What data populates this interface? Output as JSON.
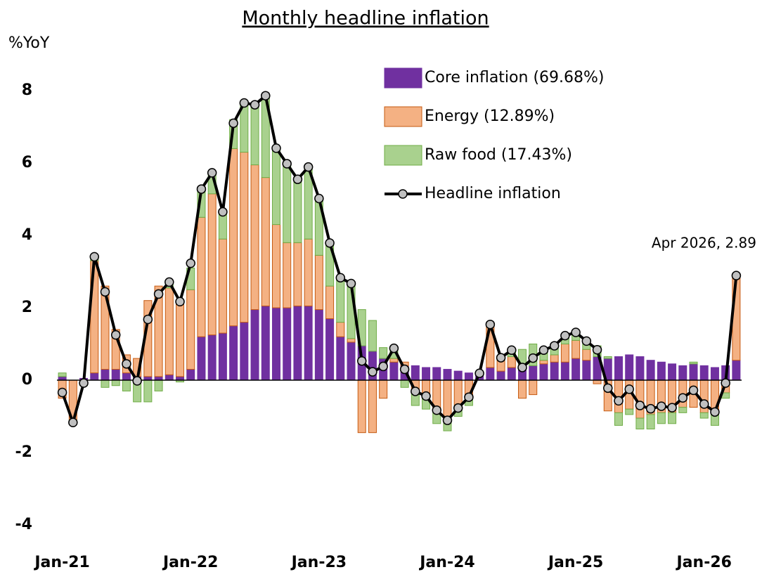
{
  "chart_data": {
    "type": "stacked-bar-line",
    "title": "Monthly headline inflation",
    "y_label": "%YoY",
    "annotation": "Apr 2026, 2.89",
    "categories": [
      "Jan-21",
      null,
      null,
      null,
      null,
      null,
      null,
      null,
      null,
      null,
      null,
      null,
      "Jan-22",
      null,
      null,
      null,
      null,
      null,
      null,
      null,
      null,
      null,
      null,
      null,
      "Jan-23",
      null,
      null,
      null,
      null,
      null,
      null,
      null,
      null,
      null,
      null,
      null,
      "Jan-24",
      null,
      null,
      null,
      null,
      null,
      null,
      null,
      null,
      null,
      null,
      null,
      "Jan-25",
      null,
      null,
      null,
      null,
      null,
      null,
      null,
      null,
      null,
      null,
      null,
      "Jan-26",
      null,
      null,
      null
    ],
    "ylim": [
      -4,
      8
    ],
    "yticks": [
      -4,
      -2,
      0,
      2,
      4,
      6,
      8
    ],
    "series": [
      {
        "name": "Core inflation (69.68%)",
        "kind": "bar",
        "color": "#7030a0",
        "values": [
          0.1,
          0,
          0.05,
          0.2,
          0.3,
          0.3,
          0.2,
          0.1,
          0.1,
          0.1,
          0.15,
          0.1,
          0.3,
          1.2,
          1.25,
          1.3,
          1.5,
          1.6,
          1.95,
          2.05,
          2,
          2,
          2.05,
          2.05,
          1.95,
          1.7,
          1.2,
          1.05,
          0.95,
          0.8,
          0.6,
          0.5,
          0.4,
          0.4,
          0.35,
          0.35,
          0.3,
          0.25,
          0.2,
          0.2,
          0.35,
          0.25,
          0.35,
          0.35,
          0.4,
          0.45,
          0.5,
          0.5,
          0.6,
          0.55,
          0.65,
          0.6,
          0.65,
          0.7,
          0.65,
          0.55,
          0.5,
          0.45,
          0.4,
          0.45,
          0.4,
          0.35,
          0.4,
          0.55
        ]
      },
      {
        "name": "Energy (12.89%)",
        "kind": "bar",
        "color": "#f4b183",
        "values": [
          -0.5,
          -1.1,
          -0.1,
          3.1,
          2.3,
          1.1,
          0.5,
          0.5,
          2.1,
          2.5,
          2.4,
          2.1,
          2.2,
          3.3,
          3.9,
          2.6,
          4.9,
          4.7,
          4,
          3.55,
          2.3,
          1.8,
          1.75,
          1.85,
          1.5,
          0.9,
          0.4,
          0.1,
          -1.45,
          -1.45,
          -0.5,
          0.1,
          0.1,
          -0.35,
          -0.5,
          -0.8,
          -1,
          -0.7,
          -0.5,
          0,
          1.2,
          0.3,
          0.3,
          -0.5,
          -0.4,
          0.1,
          0.2,
          0.5,
          0.5,
          0.3,
          -0.1,
          -0.85,
          -0.9,
          -0.8,
          -1.05,
          -0.95,
          -0.9,
          -0.9,
          -0.75,
          -0.75,
          -0.9,
          -0.95,
          -0.35,
          2.3
        ]
      },
      {
        "name": "Raw food (17.43%)",
        "kind": "bar",
        "color": "#a9d18e",
        "values": [
          0.1,
          -0.1,
          -0.05,
          0.1,
          -0.2,
          -0.15,
          -0.3,
          -0.6,
          -0.6,
          -0.3,
          0.1,
          -0.05,
          0.6,
          0.8,
          0.6,
          0.7,
          0.8,
          1.3,
          1.65,
          2.2,
          2.1,
          2.2,
          1.75,
          2,
          1.55,
          1.2,
          1.2,
          1.5,
          1,
          0.85,
          0.3,
          0.25,
          -0.2,
          -0.35,
          -0.3,
          -0.4,
          -0.4,
          -0.3,
          -0.2,
          0,
          0,
          0.05,
          0.15,
          0.5,
          0.6,
          0.3,
          0.25,
          0.2,
          0.2,
          0.2,
          0.3,
          0.05,
          -0.35,
          -0.15,
          -0.3,
          -0.4,
          -0.3,
          -0.3,
          -0.15,
          0.05,
          -0.15,
          -0.3,
          -0.15,
          0.05
        ]
      },
      {
        "name": "Headline inflation",
        "kind": "line",
        "color": "#000000",
        "values": [
          -0.34,
          -1.17,
          -0.08,
          3.41,
          2.44,
          1.25,
          0.45,
          -0.02,
          1.68,
          2.38,
          2.71,
          2.17,
          3.23,
          5.28,
          5.73,
          4.65,
          7.1,
          7.66,
          7.61,
          7.86,
          6.41,
          5.98,
          5.55,
          5.89,
          5.02,
          3.79,
          2.83,
          2.67,
          0.53,
          0.23,
          0.38,
          0.88,
          0.3,
          -0.31,
          -0.44,
          -0.83,
          -1.11,
          -0.77,
          -0.47,
          0.19,
          1.54,
          0.62,
          0.83,
          0.35,
          0.61,
          0.83,
          0.95,
          1.23,
          1.32,
          1.08,
          0.84,
          -0.22,
          -0.57,
          -0.25,
          -0.7,
          -0.79,
          -0.72,
          -0.76,
          -0.49,
          -0.28,
          -0.66,
          -0.88,
          -0.08,
          2.89
        ]
      }
    ]
  }
}
